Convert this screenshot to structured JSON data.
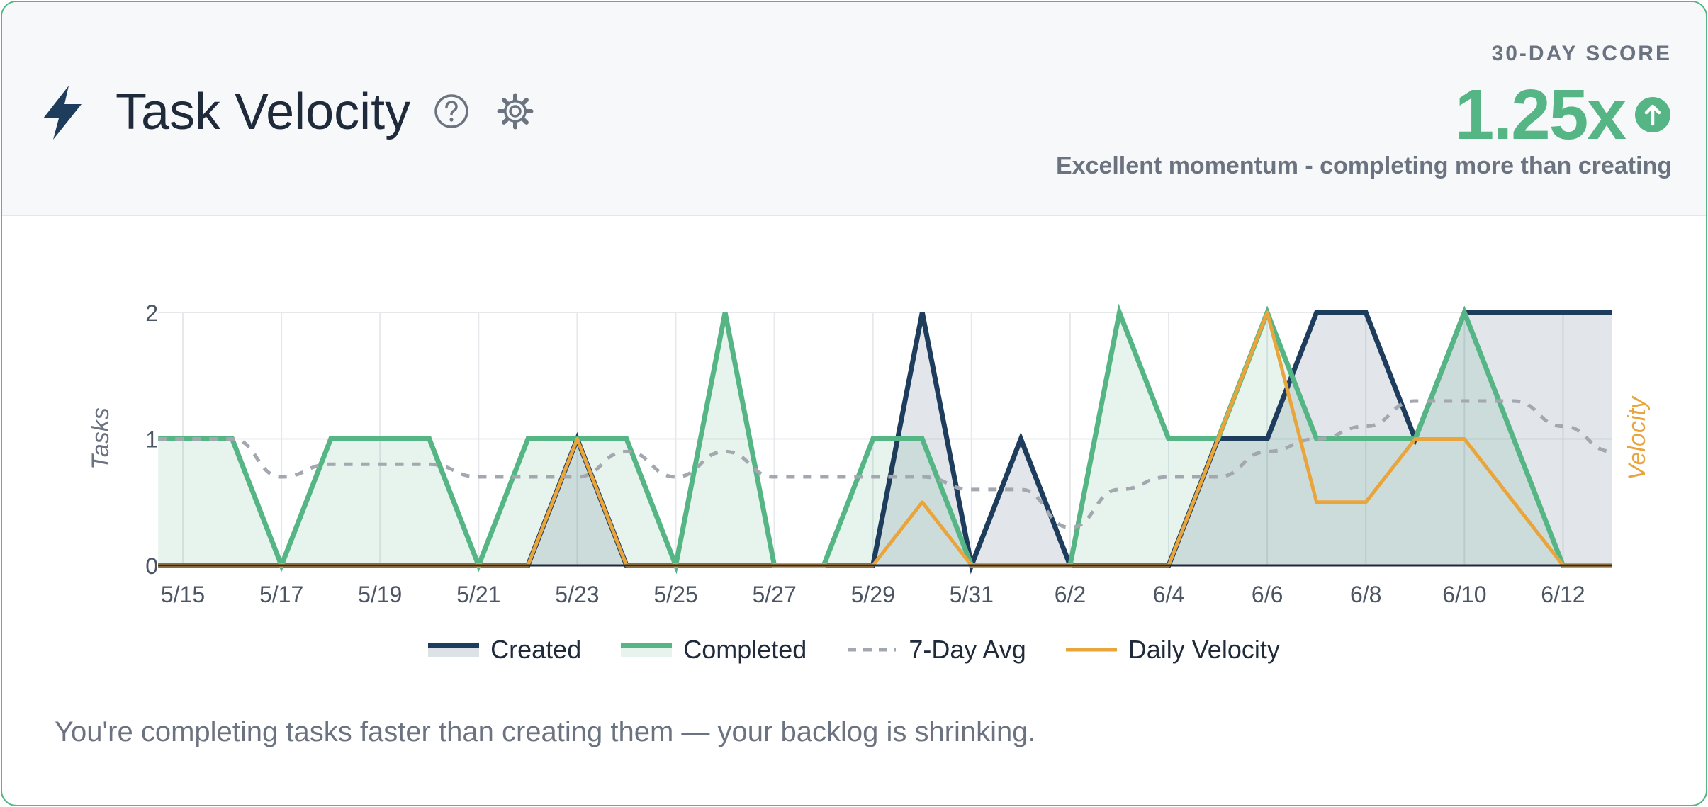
{
  "header": {
    "title": "Task Velocity",
    "title_icon": "lightning-bolt-icon",
    "help_icon": "help-circle-icon",
    "settings_icon": "gear-icon"
  },
  "score": {
    "label": "30-DAY SCORE",
    "value": "1.25x",
    "trend_icon": "arrow-up-circle-icon",
    "description": "Excellent momentum - completing more than creating"
  },
  "colors": {
    "created": "#1e3d5c",
    "completed": "#55b584",
    "avg": "#a3a7af",
    "velocity": "#e9a53c",
    "accent": "#55b584"
  },
  "chart_data": {
    "type": "line",
    "x": [
      "5/15",
      "5/16",
      "5/17",
      "5/18",
      "5/19",
      "5/20",
      "5/21",
      "5/22",
      "5/23",
      "5/24",
      "5/25",
      "5/26",
      "5/27",
      "5/28",
      "5/29",
      "5/30",
      "5/31",
      "6/1",
      "6/2",
      "6/3",
      "6/4",
      "6/5",
      "6/6",
      "6/7",
      "6/8",
      "6/9",
      "6/10",
      "6/11",
      "6/12",
      "6/13"
    ],
    "x_tick_labels": [
      "5/15",
      "5/17",
      "5/19",
      "5/21",
      "5/23",
      "5/25",
      "5/27",
      "5/29",
      "5/31",
      "6/2",
      "6/4",
      "6/6",
      "6/8",
      "6/10",
      "6/12"
    ],
    "ylabel": "Tasks",
    "y2label": "Velocity",
    "ylim": [
      0,
      2
    ],
    "y_ticks": [
      "0",
      "1",
      "2"
    ],
    "grid": true,
    "legend_position": "bottom",
    "series": [
      {
        "name": "Created",
        "type": "area",
        "values": [
          0,
          0,
          0,
          0,
          0,
          0,
          0,
          0,
          1,
          0,
          0,
          0,
          0,
          0,
          0,
          2,
          0,
          1,
          0,
          0,
          0,
          1,
          1,
          2,
          2,
          1,
          2,
          2,
          2,
          2
        ]
      },
      {
        "name": "Completed",
        "type": "area",
        "values": [
          1,
          1,
          0,
          1,
          1,
          1,
          0,
          1,
          1,
          1,
          0,
          2,
          0,
          0,
          1,
          1,
          0,
          0,
          0,
          2,
          1,
          1,
          2,
          1,
          1,
          1,
          2,
          1,
          0,
          0
        ]
      },
      {
        "name": "7-Day Avg",
        "type": "dashed-line",
        "values": [
          1,
          1,
          0.7,
          0.8,
          0.8,
          0.8,
          0.7,
          0.7,
          0.7,
          0.9,
          0.7,
          0.9,
          0.7,
          0.7,
          0.7,
          0.7,
          0.6,
          0.6,
          0.3,
          0.6,
          0.7,
          0.7,
          0.9,
          1.0,
          1.1,
          1.3,
          1.3,
          1.3,
          1.1,
          0.9
        ]
      },
      {
        "name": "Daily Velocity",
        "type": "line",
        "values": [
          0,
          0,
          0,
          0,
          0,
          0,
          0,
          0,
          1,
          0,
          0,
          0,
          0,
          0,
          0,
          0.5,
          0,
          0,
          0,
          0,
          0,
          1,
          2,
          0.5,
          0.5,
          1,
          1,
          0.5,
          0,
          0
        ]
      }
    ]
  },
  "footer": {
    "message": "You're completing tasks faster than creating them — your backlog is shrinking."
  }
}
